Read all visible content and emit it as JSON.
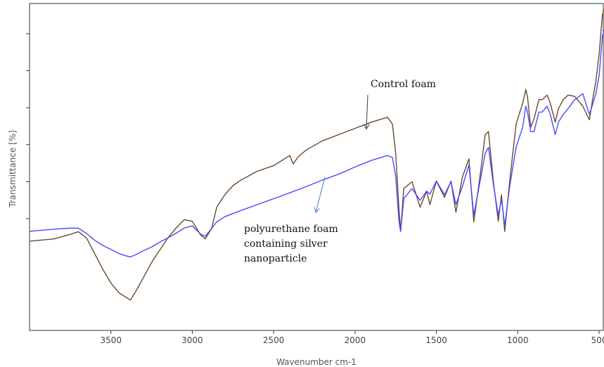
{
  "chart_data": {
    "type": "line",
    "title": "",
    "xlabel": "Wavenumber cm-1",
    "ylabel": "Transmittance [%]",
    "x_reversed": true,
    "xlim": [
      4000,
      470
    ],
    "ylim": [
      0,
      100
    ],
    "x_ticks": [
      3500,
      3000,
      2500,
      2000,
      1500,
      1000,
      500
    ],
    "y_tick_count": 6,
    "grid": false,
    "legend": "none",
    "series": [
      {
        "color": "#6b4a2b",
        "points": [
          [
            4000,
            27.3
          ],
          [
            3850,
            28.0
          ],
          [
            3750,
            29.4
          ],
          [
            3700,
            30.2
          ],
          [
            3650,
            28.3
          ],
          [
            3600,
            23.5
          ],
          [
            3550,
            18.7
          ],
          [
            3500,
            14.5
          ],
          [
            3450,
            11.5
          ],
          [
            3400,
            9.9
          ],
          [
            3380,
            9.3
          ],
          [
            3350,
            11.7
          ],
          [
            3300,
            16.2
          ],
          [
            3250,
            20.8
          ],
          [
            3200,
            24.6
          ],
          [
            3150,
            28.3
          ],
          [
            3100,
            31.3
          ],
          [
            3050,
            33.9
          ],
          [
            3000,
            33.4
          ],
          [
            2950,
            29.3
          ],
          [
            2920,
            28.0
          ],
          [
            2880,
            31.3
          ],
          [
            2850,
            37.7
          ],
          [
            2800,
            41.5
          ],
          [
            2750,
            44.3
          ],
          [
            2700,
            46.0
          ],
          [
            2600,
            48.7
          ],
          [
            2500,
            50.4
          ],
          [
            2400,
            53.5
          ],
          [
            2380,
            50.9
          ],
          [
            2350,
            53.1
          ],
          [
            2300,
            55.2
          ],
          [
            2200,
            58.0
          ],
          [
            2100,
            59.9
          ],
          [
            2000,
            61.8
          ],
          [
            1900,
            63.7
          ],
          [
            1800,
            65.2
          ],
          [
            1770,
            63.1
          ],
          [
            1750,
            54.1
          ],
          [
            1730,
            37.1
          ],
          [
            1720,
            30.3
          ],
          [
            1700,
            43.4
          ],
          [
            1650,
            45.5
          ],
          [
            1600,
            37.7
          ],
          [
            1560,
            42.6
          ],
          [
            1540,
            38.5
          ],
          [
            1500,
            45.7
          ],
          [
            1450,
            40.7
          ],
          [
            1410,
            45.7
          ],
          [
            1380,
            36.1
          ],
          [
            1340,
            46.9
          ],
          [
            1300,
            52.5
          ],
          [
            1270,
            33.2
          ],
          [
            1230,
            47.9
          ],
          [
            1200,
            59.9
          ],
          [
            1180,
            60.8
          ],
          [
            1150,
            45.7
          ],
          [
            1120,
            33.4
          ],
          [
            1100,
            41.5
          ],
          [
            1080,
            30.3
          ],
          [
            1050,
            45.5
          ],
          [
            1010,
            63.1
          ],
          [
            970,
            69.5
          ],
          [
            950,
            73.7
          ],
          [
            940,
            71.4
          ],
          [
            920,
            62.2
          ],
          [
            900,
            64.7
          ],
          [
            870,
            70.6
          ],
          [
            850,
            70.6
          ],
          [
            820,
            72.0
          ],
          [
            800,
            69.5
          ],
          [
            770,
            63.7
          ],
          [
            750,
            67.9
          ],
          [
            720,
            70.6
          ],
          [
            690,
            72.0
          ],
          [
            650,
            71.6
          ],
          [
            600,
            68.6
          ],
          [
            560,
            64.4
          ],
          [
            540,
            70.6
          ],
          [
            520,
            76.1
          ],
          [
            500,
            84.6
          ],
          [
            480,
            96.5
          ],
          [
            470,
            98.0
          ]
        ]
      },
      {
        "color": "#4a4aff",
        "points": [
          [
            4000,
            30.3
          ],
          [
            3850,
            31.0
          ],
          [
            3750,
            31.3
          ],
          [
            3700,
            31.3
          ],
          [
            3650,
            29.7
          ],
          [
            3600,
            27.6
          ],
          [
            3550,
            26.0
          ],
          [
            3500,
            24.8
          ],
          [
            3450,
            23.5
          ],
          [
            3400,
            22.7
          ],
          [
            3380,
            22.5
          ],
          [
            3350,
            23.1
          ],
          [
            3300,
            24.4
          ],
          [
            3250,
            25.5
          ],
          [
            3200,
            27.0
          ],
          [
            3150,
            28.3
          ],
          [
            3100,
            29.7
          ],
          [
            3050,
            31.3
          ],
          [
            3000,
            32.0
          ],
          [
            2950,
            29.5
          ],
          [
            2920,
            28.8
          ],
          [
            2880,
            31.3
          ],
          [
            2850,
            33.2
          ],
          [
            2800,
            34.8
          ],
          [
            2700,
            36.7
          ],
          [
            2600,
            38.5
          ],
          [
            2500,
            40.3
          ],
          [
            2400,
            42.1
          ],
          [
            2300,
            44.0
          ],
          [
            2200,
            46.0
          ],
          [
            2100,
            47.8
          ],
          [
            2000,
            50.0
          ],
          [
            1900,
            52.0
          ],
          [
            1800,
            53.5
          ],
          [
            1770,
            52.9
          ],
          [
            1750,
            47.1
          ],
          [
            1730,
            33.4
          ],
          [
            1720,
            30.3
          ],
          [
            1700,
            40.3
          ],
          [
            1650,
            43.4
          ],
          [
            1600,
            39.8
          ],
          [
            1560,
            42.6
          ],
          [
            1540,
            41.7
          ],
          [
            1500,
            45.7
          ],
          [
            1450,
            41.5
          ],
          [
            1410,
            45.5
          ],
          [
            1380,
            38.5
          ],
          [
            1340,
            44.0
          ],
          [
            1300,
            50.6
          ],
          [
            1270,
            35.2
          ],
          [
            1230,
            46.0
          ],
          [
            1200,
            54.1
          ],
          [
            1180,
            56.0
          ],
          [
            1150,
            44.8
          ],
          [
            1120,
            35.2
          ],
          [
            1100,
            40.3
          ],
          [
            1080,
            32.0
          ],
          [
            1050,
            44.0
          ],
          [
            1010,
            56.0
          ],
          [
            970,
            62.2
          ],
          [
            950,
            68.6
          ],
          [
            940,
            66.8
          ],
          [
            920,
            60.8
          ],
          [
            900,
            60.8
          ],
          [
            870,
            66.8
          ],
          [
            850,
            66.8
          ],
          [
            820,
            68.6
          ],
          [
            800,
            66.1
          ],
          [
            770,
            59.9
          ],
          [
            750,
            63.7
          ],
          [
            720,
            66.1
          ],
          [
            690,
            67.9
          ],
          [
            650,
            70.6
          ],
          [
            600,
            72.4
          ],
          [
            560,
            66.1
          ],
          [
            540,
            69.1
          ],
          [
            520,
            72.4
          ],
          [
            500,
            78.0
          ],
          [
            480,
            90.0
          ],
          [
            470,
            92.0
          ]
        ]
      }
    ],
    "annotations": [
      {
        "lines": [
          "Control foam"
        ],
        "arrow_to": [
          1930,
          61.4
        ]
      },
      {
        "lines": [
          "polyurethane foam",
          "containing silver",
          "nanoparticle"
        ],
        "arrow_to": [
          2240,
          46.0
        ]
      }
    ]
  }
}
